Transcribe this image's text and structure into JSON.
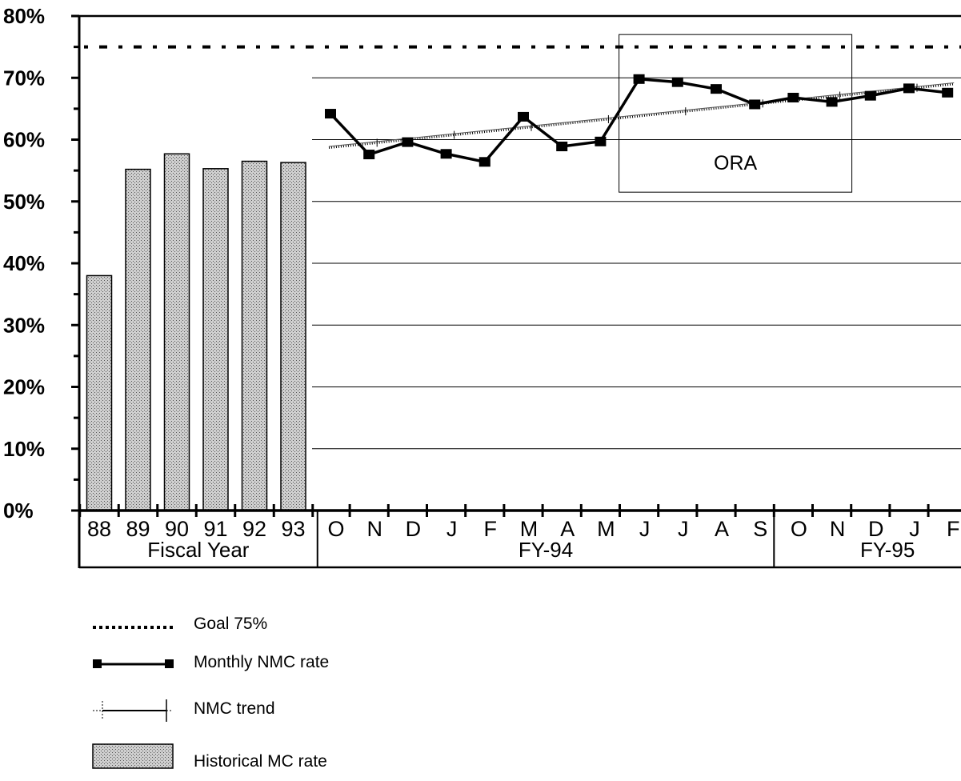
{
  "chart_data": {
    "type": "bar",
    "ylim": [
      0,
      80
    ],
    "y_ticks": [
      "0%",
      "10%",
      "20%",
      "30%",
      "40%",
      "50%",
      "60%",
      "70%",
      "80%"
    ],
    "grid": "horizontal",
    "historical": {
      "name": "Historical MC rate",
      "categories": [
        "88",
        "89",
        "90",
        "91",
        "92",
        "93"
      ],
      "values": [
        38,
        55.2,
        57.7,
        55.3,
        56.5,
        56.3
      ]
    },
    "monthly": {
      "name": "Monthly NMC rate",
      "categories": [
        "O",
        "N",
        "D",
        "J",
        "F",
        "M",
        "A",
        "M",
        "J",
        "J",
        "A",
        "S",
        "O",
        "N",
        "D",
        "J",
        "F"
      ],
      "values": [
        64.2,
        57.6,
        59.6,
        57.7,
        56.4,
        63.7,
        58.9,
        59.7,
        69.8,
        69.3,
        68.2,
        65.7,
        66.8,
        66.1,
        67.1,
        68.3,
        67.6
      ]
    },
    "trend": {
      "name": "NMC trend",
      "start": 58.7,
      "end": 69.0
    },
    "goal": {
      "name": "Goal 75%",
      "value": 75
    },
    "groups": [
      {
        "label": "Fiscal Year",
        "span": 6
      },
      {
        "label": "FY-94",
        "span": 12
      },
      {
        "label": "FY-95",
        "span": 5
      }
    ],
    "annotation": {
      "label": "ORA",
      "from_month": 8,
      "to_month": 13,
      "y_top": 77,
      "y_bottom": 51.5
    },
    "colors": {
      "axis": "#000000",
      "bar_fill": "#bdbdbd",
      "line": "#000000"
    }
  },
  "legend": [
    {
      "key": "goal",
      "label": "Goal 75%"
    },
    {
      "key": "monthly",
      "label": "Monthly NMC rate"
    },
    {
      "key": "trend",
      "label": "NMC trend"
    },
    {
      "key": "historical",
      "label": "Historical MC rate"
    }
  ]
}
